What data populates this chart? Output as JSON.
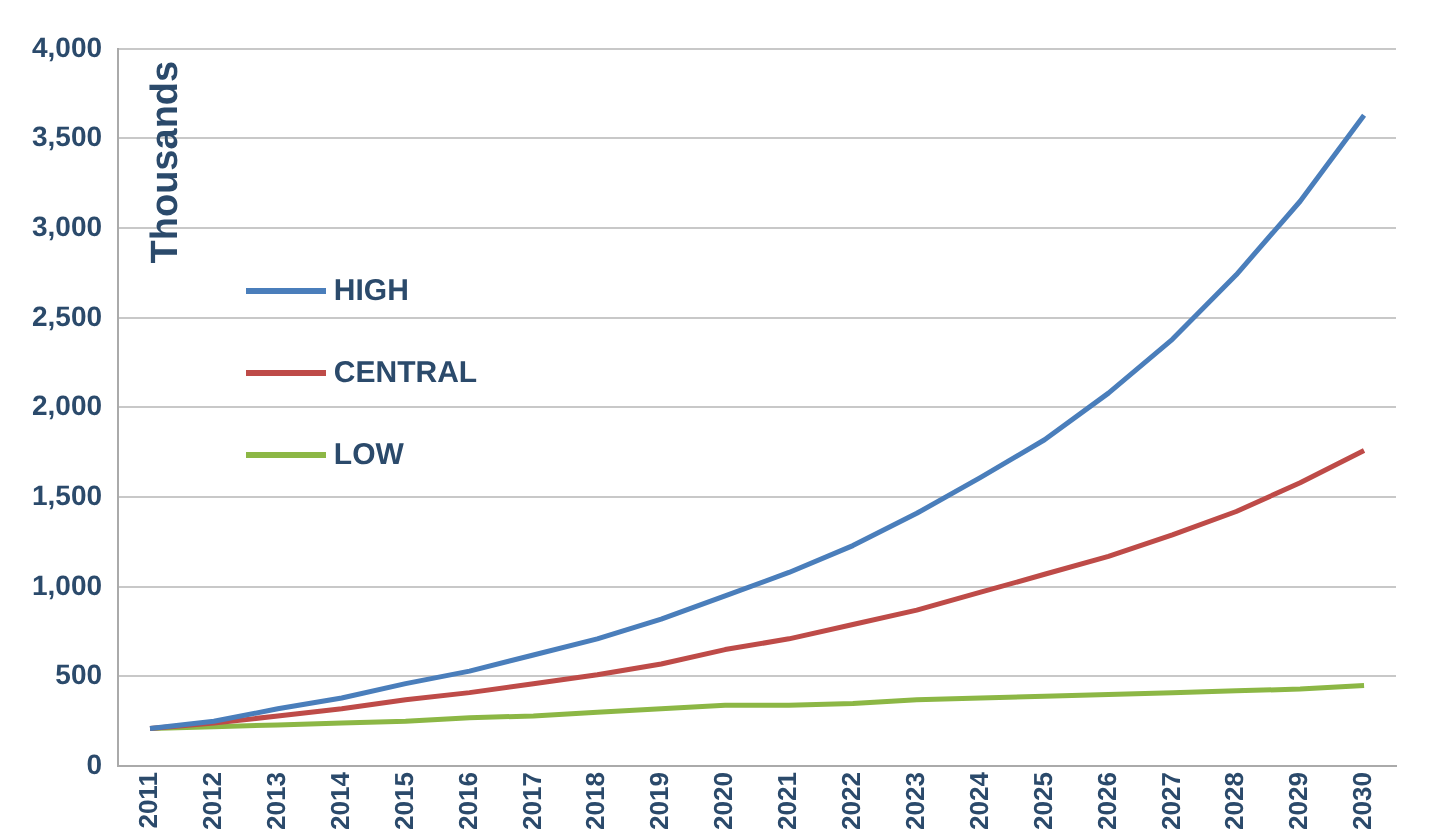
{
  "chart_data": {
    "type": "line",
    "ylabel": "Thousands",
    "categories": [
      "2011",
      "2012",
      "2013",
      "2014",
      "2015",
      "2016",
      "2017",
      "2018",
      "2019",
      "2020",
      "2021",
      "2022",
      "2023",
      "2024",
      "2025",
      "2026",
      "2027",
      "2028",
      "2029",
      "2030"
    ],
    "series": [
      {
        "name": "HIGH",
        "color": "#4a7ebb",
        "values": [
          210,
          250,
          320,
          380,
          460,
          530,
          620,
          710,
          820,
          950,
          1080,
          1230,
          1410,
          1610,
          1820,
          2080,
          2380,
          2740,
          3150,
          3630
        ]
      },
      {
        "name": "CENTRAL",
        "color": "#be4b48",
        "values": [
          210,
          240,
          280,
          320,
          370,
          410,
          460,
          510,
          570,
          650,
          710,
          790,
          870,
          970,
          1070,
          1170,
          1290,
          1420,
          1580,
          1760
        ]
      },
      {
        "name": "LOW",
        "color": "#8cb745",
        "values": [
          210,
          220,
          230,
          240,
          250,
          270,
          280,
          300,
          320,
          340,
          340,
          350,
          370,
          380,
          390,
          400,
          410,
          420,
          430,
          450
        ]
      }
    ],
    "ylim": [
      0,
      4000
    ],
    "yticks": [
      0,
      500,
      {
        "value": 1000,
        "label": "1,000"
      },
      {
        "value": 1500,
        "label": "1,500"
      },
      {
        "value": 2000,
        "label": "2,000"
      },
      {
        "value": 2500,
        "label": "2,500"
      },
      {
        "value": 3000,
        "label": "3,000"
      },
      {
        "value": 3500,
        "label": "3,500"
      },
      {
        "value": 4000,
        "label": "4,000"
      }
    ],
    "grid": "y",
    "legend": "top left",
    "marker": "none",
    "line_style": "solid"
  }
}
